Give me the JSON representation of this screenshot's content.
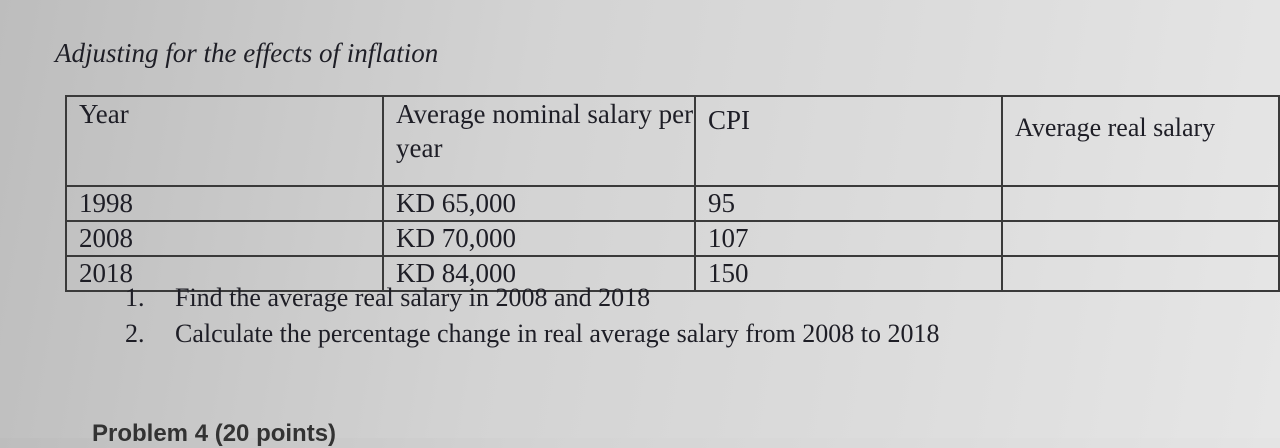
{
  "title": "Adjusting for the effects of inflation",
  "table": {
    "header": [
      "Year",
      "Average nominal salary per year",
      "CPI",
      "Average real salary"
    ],
    "rows": [
      [
        1998,
        "KD 65,000",
        95
      ],
      [
        2008,
        "KD 70,000",
        107
      ],
      [
        2018,
        "KD 84,000",
        150
      ]
    ]
  },
  "questions": [
    {
      "number": "1.",
      "text": "Find the average real salary in 2008 and 2018"
    },
    {
      "number": "2.",
      "text": "Calculate the percentage change in real average salary from 2008 to 2018"
    }
  ],
  "next_heading": "Problem 4 (20 points)"
}
